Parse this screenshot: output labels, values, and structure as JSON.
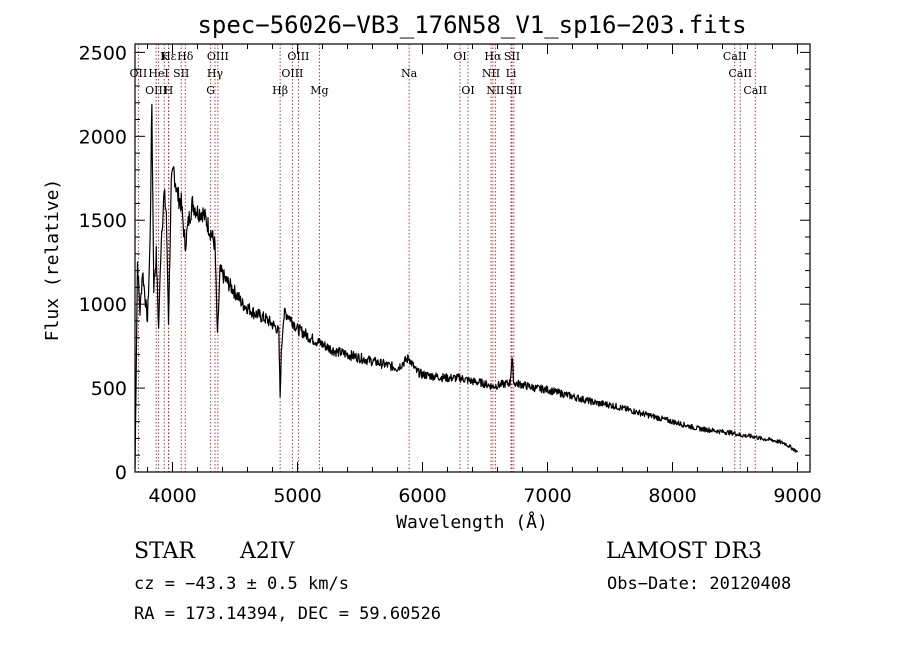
{
  "chart_data": {
    "type": "line",
    "title": "spec−56026−VB3_176N58_V1_sp16−203.fits",
    "xlabel": "Wavelength (Å)",
    "ylabel": "Flux (relative)",
    "xlim": [
      3700,
      9100
    ],
    "ylim": [
      0,
      2550
    ],
    "xticks": [
      4000,
      5000,
      6000,
      7000,
      8000,
      9000
    ],
    "yticks": [
      0,
      500,
      1000,
      1500,
      2000,
      2500
    ],
    "grid": false,
    "series": [
      {
        "name": "spectrum",
        "x": [
          3700,
          3720,
          3740,
          3760,
          3780,
          3800,
          3820,
          3835,
          3850,
          3870,
          3889,
          3910,
          3933,
          3950,
          3968,
          3990,
          4010,
          4040,
          4070,
          4101,
          4130,
          4160,
          4200,
          4240,
          4280,
          4310,
          4340,
          4360,
          4380,
          4420,
          4470,
          4520,
          4560,
          4600,
          4650,
          4700,
          4750,
          4800,
          4830,
          4850,
          4861,
          4870,
          4885,
          4900,
          4930,
          4960,
          5000,
          5050,
          5100,
          5150,
          5200,
          5250,
          5300,
          5400,
          5500,
          5600,
          5700,
          5800,
          5890,
          5950,
          6000,
          6100,
          6200,
          6300,
          6350,
          6400,
          6480,
          6563,
          6620,
          6700,
          6716,
          6731,
          6800,
          6900,
          7000,
          7100,
          7200,
          7300,
          7400,
          7500,
          7600,
          7700,
          7800,
          7900,
          8000,
          8100,
          8200,
          8300,
          8400,
          8498,
          8542,
          8600,
          8662,
          8700,
          8800,
          8900,
          9000
        ],
        "y": [
          20,
          1250,
          950,
          1200,
          1050,
          900,
          1350,
          2200,
          1100,
          1300,
          850,
          1400,
          1650,
          1550,
          900,
          1700,
          1800,
          1650,
          1600,
          1350,
          1500,
          1600,
          1550,
          1550,
          1480,
          1420,
          1350,
          800,
          1200,
          1150,
          1100,
          1050,
          1000,
          980,
          950,
          930,
          910,
          880,
          860,
          830,
          450,
          700,
          900,
          950,
          930,
          900,
          850,
          830,
          800,
          780,
          760,
          740,
          720,
          700,
          680,
          660,
          640,
          620,
          680,
          600,
          580,
          570,
          560,
          560,
          550,
          540,
          530,
          510,
          520,
          530,
          680,
          530,
          520,
          500,
          490,
          470,
          450,
          430,
          410,
          400,
          380,
          360,
          340,
          320,
          300,
          280,
          260,
          250,
          240,
          230,
          220,
          215,
          210,
          200,
          190,
          170,
          120
        ]
      }
    ],
    "lines": [
      {
        "label": "Hε",
        "x": 3970,
        "row": 0
      },
      {
        "label": "K",
        "x": 3934,
        "row": 0
      },
      {
        "label": "Hδ",
        "x": 4102,
        "row": 0
      },
      {
        "label": "OIII",
        "x": 4363,
        "row": 0
      },
      {
        "label": "OIII",
        "x": 5007,
        "row": 0
      },
      {
        "label": "OI",
        "x": 6300,
        "row": 0
      },
      {
        "label": "Hα",
        "x": 6563,
        "row": 0
      },
      {
        "label": "SII",
        "x": 6716,
        "row": 0
      },
      {
        "label": "CaII",
        "x": 8498,
        "row": 0
      },
      {
        "label": "OII",
        "x": 3727,
        "row": 1
      },
      {
        "label": "HeI",
        "x": 3889,
        "row": 1
      },
      {
        "label": "SII",
        "x": 4070,
        "row": 1
      },
      {
        "label": "Hγ",
        "x": 4340,
        "row": 1
      },
      {
        "label": "OIII",
        "x": 4959,
        "row": 1
      },
      {
        "label": "Na",
        "x": 5893,
        "row": 1
      },
      {
        "label": "NII",
        "x": 6548,
        "row": 1
      },
      {
        "label": "Li",
        "x": 6708,
        "row": 1
      },
      {
        "label": "CaII",
        "x": 8542,
        "row": 1
      },
      {
        "label": "OIII",
        "x": 3869,
        "row": 2
      },
      {
        "label": "H",
        "x": 3968,
        "row": 2
      },
      {
        "label": "G",
        "x": 4305,
        "row": 2
      },
      {
        "label": "Hβ",
        "x": 4861,
        "row": 2
      },
      {
        "label": "Mg",
        "x": 5175,
        "row": 2
      },
      {
        "label": "OI",
        "x": 6364,
        "row": 2
      },
      {
        "label": "NII",
        "x": 6583,
        "row": 2
      },
      {
        "label": "SII",
        "x": 6731,
        "row": 2
      },
      {
        "label": "CaII",
        "x": 8662,
        "row": 2
      }
    ],
    "line_color": "#000000",
    "marker_color": "#b22222"
  },
  "info": {
    "object_class": "STAR",
    "subclass": "A2IV",
    "survey": "LAMOST DR3",
    "cz": "cz = −43.3 ± 0.5 km/s",
    "obs_date": "Obs−Date: 20120408",
    "coords": "RA = 173.14394, DEC =  59.60526"
  }
}
